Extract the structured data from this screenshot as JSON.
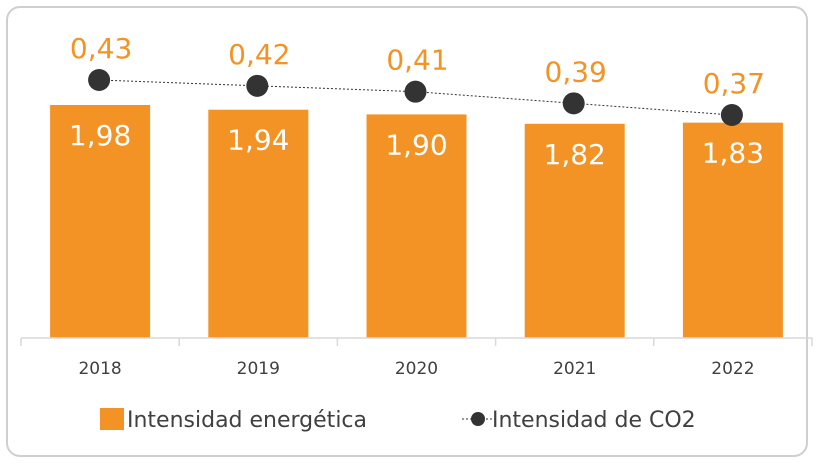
{
  "chart_data": {
    "type": "bar",
    "categories": [
      "2018",
      "2019",
      "2020",
      "2021",
      "2022"
    ],
    "series": [
      {
        "name": "Intensidad energética",
        "kind": "bar",
        "values": [
          1.98,
          1.94,
          1.9,
          1.82,
          1.83
        ],
        "labels": [
          "1,98",
          "1,94",
          "1,90",
          "1,82",
          "1,83"
        ],
        "color": "#f39325"
      },
      {
        "name": "Intensidad de CO2",
        "kind": "line",
        "values": [
          0.43,
          0.42,
          0.41,
          0.39,
          0.37
        ],
        "labels": [
          "0,43",
          "0,42",
          "0,41",
          "0,39",
          "0,37"
        ],
        "color": "#333333",
        "label_color": "#f39325"
      }
    ],
    "grid": false,
    "legend": "bottom",
    "legend_labels": [
      "Intensidad energética",
      "Intensidad de CO2"
    ]
  }
}
